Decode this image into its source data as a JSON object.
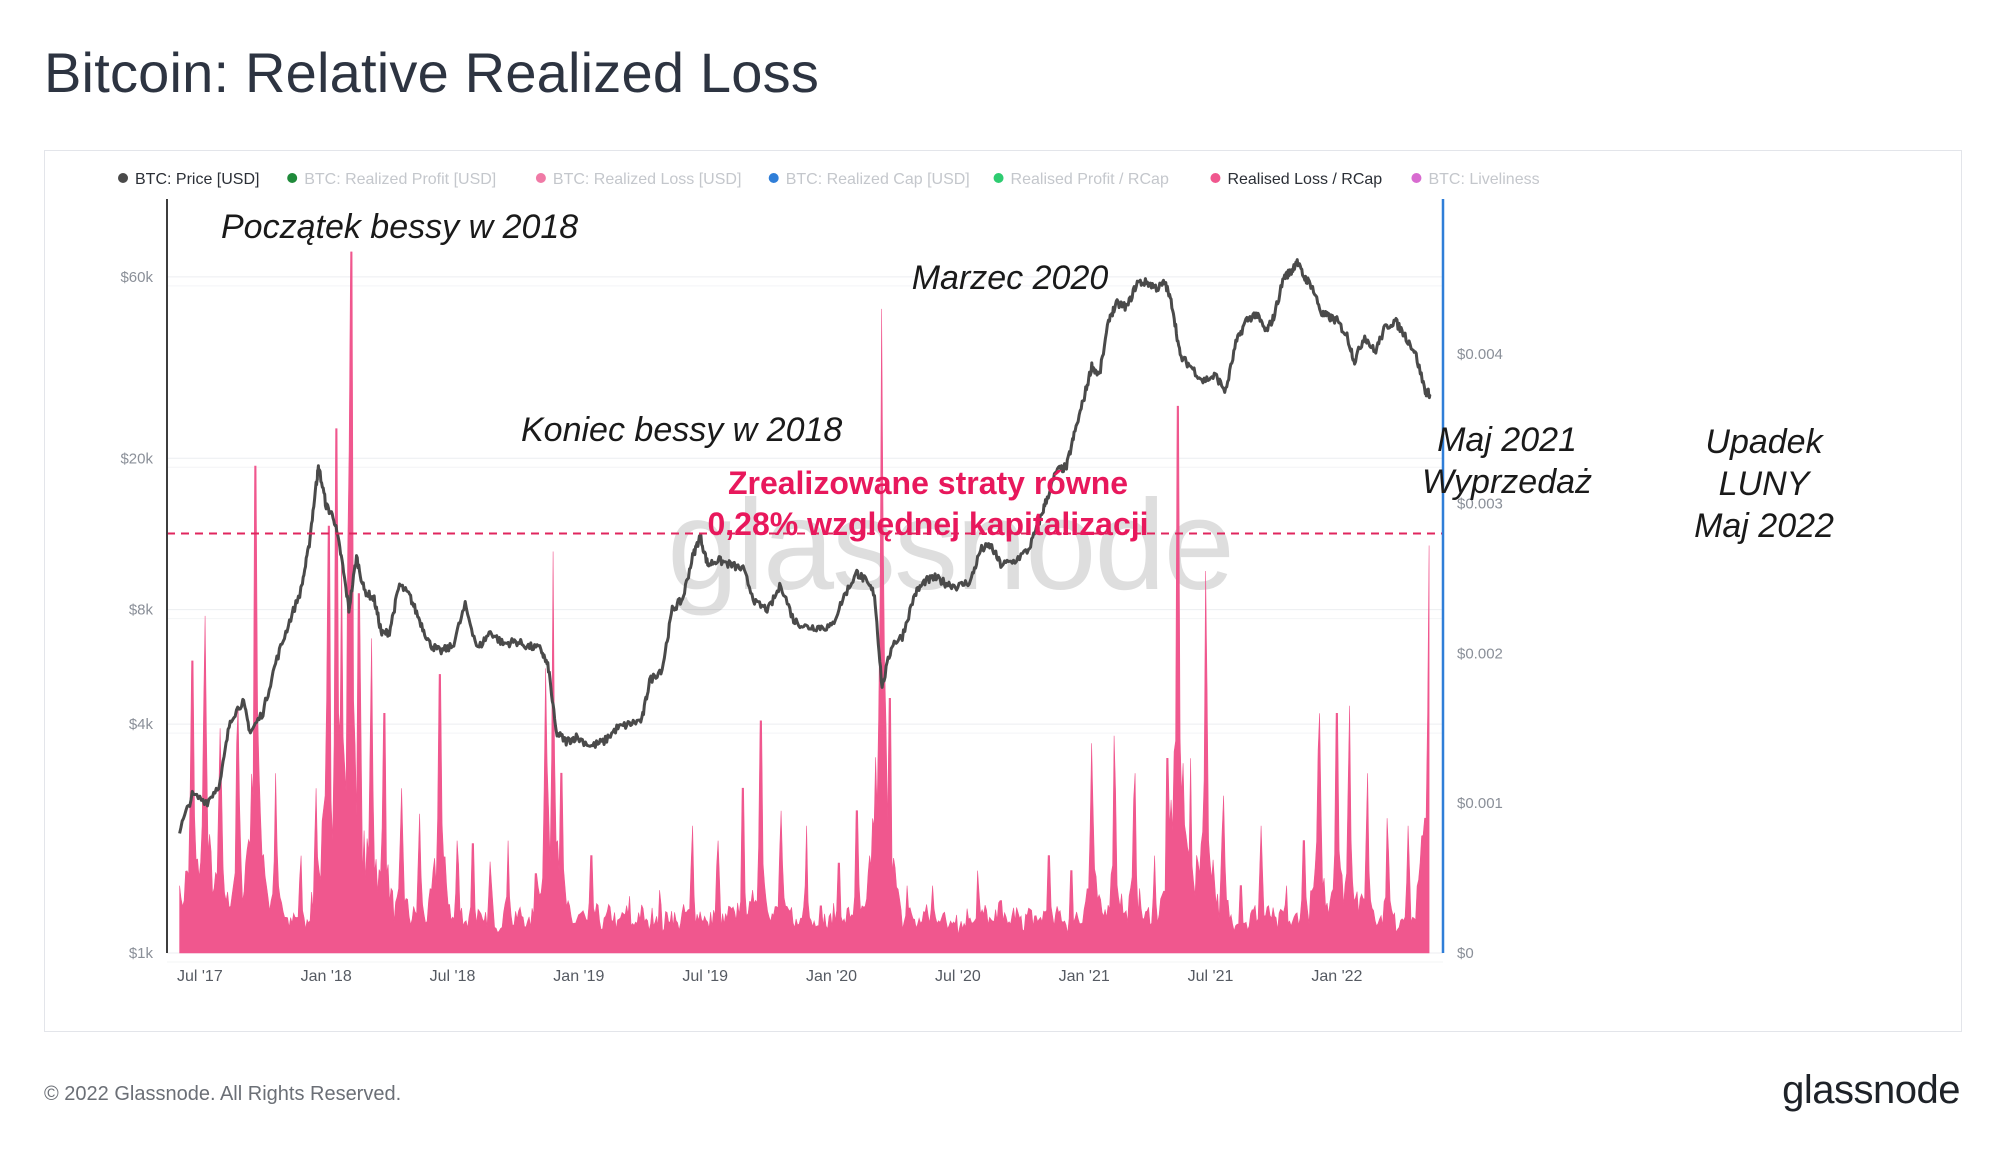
{
  "header": {
    "title": "Bitcoin: Relative Realized Loss"
  },
  "footer": {
    "copyright": "© 2022 Glassnode. All Rights Reserved.",
    "brand": "glassnode"
  },
  "watermark": "glassnode",
  "colors": {
    "price": "#4a4a4a",
    "loss": "#f0578e",
    "threshold": "#e0265e",
    "right_axis": "#2f7ed8",
    "annotation_text": "#1a1a1a",
    "annotation_highlight": "#e8185c"
  },
  "chart_data": {
    "type": "line",
    "title": "Bitcoin: Relative Realized Loss",
    "legend": [
      {
        "label": "BTC: Price [USD]",
        "color": "#4a4a4a",
        "active": true
      },
      {
        "label": "BTC: Realized Profit [USD]",
        "color": "#1f8a3a",
        "active": false
      },
      {
        "label": "BTC: Realized Loss [USD]",
        "color": "#f07aa6",
        "active": false
      },
      {
        "label": "BTC: Realized Cap [USD]",
        "color": "#2f7ed8",
        "active": false
      },
      {
        "label": "Realised Profit / RCap",
        "color": "#2ecc71",
        "active": false
      },
      {
        "label": "Realised Loss / RCap",
        "color": "#f0578e",
        "active": true
      },
      {
        "label": "BTC: Liveliness",
        "color": "#d86bd0",
        "active": false
      }
    ],
    "x_axis": {
      "start": "2017-06",
      "end": "2022-06",
      "ticks": [
        {
          "label": "Jul '17",
          "t": 2017.5
        },
        {
          "label": "Jan '18",
          "t": 2018.0
        },
        {
          "label": "Jul '18",
          "t": 2018.5
        },
        {
          "label": "Jan '19",
          "t": 2019.0
        },
        {
          "label": "Jul '19",
          "t": 2019.5
        },
        {
          "label": "Jan '20",
          "t": 2020.0
        },
        {
          "label": "Jul '20",
          "t": 2020.5
        },
        {
          "label": "Jan '21",
          "t": 2021.0
        },
        {
          "label": "Jul '21",
          "t": 2021.5
        },
        {
          "label": "Jan '22",
          "t": 2022.0
        }
      ]
    },
    "y_left": {
      "label": "BTC: Price [USD]",
      "scale": "log",
      "range": [
        1000,
        95000
      ],
      "ticks": [
        {
          "label": "$1k",
          "v": 1000
        },
        {
          "label": "$4k",
          "v": 4000
        },
        {
          "label": "$8k",
          "v": 8000
        },
        {
          "label": "$20k",
          "v": 20000
        },
        {
          "label": "$60k",
          "v": 60000
        }
      ]
    },
    "y_right": {
      "label": "Realised Loss / RCap",
      "scale": "linear",
      "range": [
        0,
        0.00502
      ],
      "ticks": [
        {
          "label": "$0",
          "v": 0
        },
        {
          "label": "$0.001",
          "v": 0.001
        },
        {
          "label": "$0.002",
          "v": 0.002
        },
        {
          "label": "$0.003",
          "v": 0.003
        },
        {
          "label": "$0.004",
          "v": 0.004
        }
      ]
    },
    "series": [
      {
        "name": "BTC: Price [USD]",
        "axis": "left",
        "points": [
          [
            2017.42,
            2100
          ],
          [
            2017.47,
            2600
          ],
          [
            2017.53,
            2500
          ],
          [
            2017.58,
            2800
          ],
          [
            2017.62,
            4100
          ],
          [
            2017.67,
            4600
          ],
          [
            2017.7,
            3800
          ],
          [
            2017.75,
            4300
          ],
          [
            2017.8,
            5800
          ],
          [
            2017.85,
            7300
          ],
          [
            2017.9,
            9000
          ],
          [
            2017.93,
            11500
          ],
          [
            2017.96,
            17000
          ],
          [
            2017.97,
            19000
          ],
          [
            2018.0,
            15000
          ],
          [
            2018.03,
            14000
          ],
          [
            2018.06,
            11000
          ],
          [
            2018.09,
            8000
          ],
          [
            2018.12,
            11000
          ],
          [
            2018.15,
            9000
          ],
          [
            2018.19,
            8500
          ],
          [
            2018.22,
            6900
          ],
          [
            2018.25,
            7000
          ],
          [
            2018.29,
            9300
          ],
          [
            2018.33,
            8700
          ],
          [
            2018.37,
            7500
          ],
          [
            2018.41,
            6500
          ],
          [
            2018.45,
            6200
          ],
          [
            2018.5,
            6400
          ],
          [
            2018.55,
            8200
          ],
          [
            2018.6,
            6300
          ],
          [
            2018.65,
            7000
          ],
          [
            2018.7,
            6500
          ],
          [
            2018.75,
            6600
          ],
          [
            2018.8,
            6400
          ],
          [
            2018.85,
            6300
          ],
          [
            2018.88,
            5600
          ],
          [
            2018.91,
            3800
          ],
          [
            2018.95,
            3600
          ],
          [
            2018.99,
            3700
          ],
          [
            2019.05,
            3500
          ],
          [
            2019.1,
            3600
          ],
          [
            2019.15,
            3900
          ],
          [
            2019.2,
            4000
          ],
          [
            2019.25,
            4100
          ],
          [
            2019.28,
            5200
          ],
          [
            2019.33,
            5600
          ],
          [
            2019.37,
            8000
          ],
          [
            2019.41,
            8500
          ],
          [
            2019.45,
            11000
          ],
          [
            2019.48,
            12500
          ],
          [
            2019.51,
            10500
          ],
          [
            2019.55,
            10800
          ],
          [
            2019.6,
            10500
          ],
          [
            2019.65,
            10200
          ],
          [
            2019.7,
            8300
          ],
          [
            2019.75,
            8000
          ],
          [
            2019.8,
            9300
          ],
          [
            2019.85,
            7500
          ],
          [
            2019.9,
            7200
          ],
          [
            2019.95,
            7200
          ],
          [
            2020.0,
            7200
          ],
          [
            2020.05,
            8700
          ],
          [
            2020.1,
            10000
          ],
          [
            2020.13,
            9600
          ],
          [
            2020.17,
            8800
          ],
          [
            2020.2,
            5000
          ],
          [
            2020.24,
            6500
          ],
          [
            2020.28,
            6800
          ],
          [
            2020.33,
            8800
          ],
          [
            2020.37,
            9500
          ],
          [
            2020.41,
            9700
          ],
          [
            2020.45,
            9400
          ],
          [
            2020.5,
            9200
          ],
          [
            2020.55,
            9500
          ],
          [
            2020.59,
            11500
          ],
          [
            2020.63,
            11800
          ],
          [
            2020.67,
            10500
          ],
          [
            2020.72,
            10700
          ],
          [
            2020.78,
            11500
          ],
          [
            2020.82,
            13500
          ],
          [
            2020.85,
            15500
          ],
          [
            2020.89,
            18500
          ],
          [
            2020.93,
            19000
          ],
          [
            2020.96,
            23000
          ],
          [
            2021.0,
            29000
          ],
          [
            2021.03,
            35000
          ],
          [
            2021.06,
            33000
          ],
          [
            2021.1,
            47000
          ],
          [
            2021.13,
            51000
          ],
          [
            2021.17,
            50000
          ],
          [
            2021.21,
            58000
          ],
          [
            2021.25,
            58000
          ],
          [
            2021.29,
            56000
          ],
          [
            2021.32,
            58000
          ],
          [
            2021.35,
            50000
          ],
          [
            2021.38,
            37000
          ],
          [
            2021.42,
            35000
          ],
          [
            2021.47,
            32000
          ],
          [
            2021.52,
            33000
          ],
          [
            2021.56,
            30000
          ],
          [
            2021.6,
            40000
          ],
          [
            2021.64,
            46000
          ],
          [
            2021.68,
            48000
          ],
          [
            2021.72,
            43000
          ],
          [
            2021.75,
            47000
          ],
          [
            2021.79,
            60000
          ],
          [
            2021.82,
            62000
          ],
          [
            2021.84,
            66000
          ],
          [
            2021.87,
            60000
          ],
          [
            2021.9,
            57000
          ],
          [
            2021.94,
            48000
          ],
          [
            2021.97,
            47000
          ],
          [
            2022.0,
            46000
          ],
          [
            2022.04,
            42000
          ],
          [
            2022.07,
            36000
          ],
          [
            2022.11,
            42000
          ],
          [
            2022.15,
            38000
          ],
          [
            2022.19,
            44000
          ],
          [
            2022.23,
            46000
          ],
          [
            2022.27,
            42000
          ],
          [
            2022.31,
            38000
          ],
          [
            2022.35,
            30000
          ],
          [
            2022.37,
            29500
          ]
        ]
      },
      {
        "name": "Realised Loss / RCap",
        "axis": "right",
        "spikes": [
          [
            2017.42,
            0.00045
          ],
          [
            2017.47,
            0.00195
          ],
          [
            2017.52,
            0.00225
          ],
          [
            2017.58,
            0.0015
          ],
          [
            2017.65,
            0.00165
          ],
          [
            2017.72,
            0.00325
          ],
          [
            2017.8,
            0.0012
          ],
          [
            2017.9,
            0.00065
          ],
          [
            2017.96,
            0.0011
          ],
          [
            2018.01,
            0.00285
          ],
          [
            2018.04,
            0.0035
          ],
          [
            2018.06,
            0.00265
          ],
          [
            2018.09,
            0.00335
          ],
          [
            2018.1,
            0.00468
          ],
          [
            2018.13,
            0.0024
          ],
          [
            2018.18,
            0.0021
          ],
          [
            2018.23,
            0.0016
          ],
          [
            2018.3,
            0.0011
          ],
          [
            2018.37,
            0.00093
          ],
          [
            2018.45,
            0.00186
          ],
          [
            2018.52,
            0.00075
          ],
          [
            2018.58,
            0.00073
          ],
          [
            2018.65,
            0.00061
          ],
          [
            2018.72,
            0.00075
          ],
          [
            2018.83,
            0.00053
          ],
          [
            2018.87,
            0.0019
          ],
          [
            2018.9,
            0.00268
          ],
          [
            2018.93,
            0.0012
          ],
          [
            2019.05,
            0.00065
          ],
          [
            2019.2,
            0.00038
          ],
          [
            2019.32,
            0.00042
          ],
          [
            2019.45,
            0.00085
          ],
          [
            2019.55,
            0.00075
          ],
          [
            2019.65,
            0.0011
          ],
          [
            2019.72,
            0.00155
          ],
          [
            2019.8,
            0.00095
          ],
          [
            2019.9,
            0.00085
          ],
          [
            2020.03,
            0.0006
          ],
          [
            2020.1,
            0.00095
          ],
          [
            2020.15,
            0.00065
          ],
          [
            2020.2,
            0.0043
          ],
          [
            2020.23,
            0.0017
          ],
          [
            2020.3,
            0.00045
          ],
          [
            2020.4,
            0.00045
          ],
          [
            2020.5,
            0.00012
          ],
          [
            2020.58,
            0.00055
          ],
          [
            2020.67,
            0.00035
          ],
          [
            2020.78,
            0.0003
          ],
          [
            2020.86,
            0.00065
          ],
          [
            2020.95,
            0.00055
          ],
          [
            2021.03,
            0.0014
          ],
          [
            2021.12,
            0.00145
          ],
          [
            2021.2,
            0.0012
          ],
          [
            2021.28,
            0.00065
          ],
          [
            2021.33,
            0.0013
          ],
          [
            2021.37,
            0.00365
          ],
          [
            2021.42,
            0.0013
          ],
          [
            2021.48,
            0.00255
          ],
          [
            2021.55,
            0.00105
          ],
          [
            2021.62,
            0.00045
          ],
          [
            2021.7,
            0.00085
          ],
          [
            2021.8,
            0.00045
          ],
          [
            2021.87,
            0.00075
          ],
          [
            2021.93,
            0.0016
          ],
          [
            2022.0,
            0.0016
          ],
          [
            2022.05,
            0.00165
          ],
          [
            2022.12,
            0.0012
          ],
          [
            2022.2,
            0.0009
          ],
          [
            2022.28,
            0.00085
          ],
          [
            2022.35,
            0.0009
          ],
          [
            2022.365,
            0.00272
          ]
        ]
      }
    ],
    "threshold": {
      "label": "0,28%",
      "value": 0.0028
    },
    "annotations": [
      {
        "text": "Początek bessy w 2018",
        "style": "italic"
      },
      {
        "text": "Koniec bessy w 2018",
        "style": "italic"
      },
      {
        "text": "Marzec 2020",
        "style": "italic"
      },
      {
        "text": "Maj 2021",
        "style": "italic"
      },
      {
        "text": "Wyprzedaż",
        "style": "italic"
      },
      {
        "text": "Upadek",
        "style": "italic"
      },
      {
        "text": "LUNY",
        "style": "italic"
      },
      {
        "text": "Maj 2022",
        "style": "italic"
      },
      {
        "text": "Zrealizowane straty równe",
        "style": "highlight"
      },
      {
        "text": "0,28% względnej kapitalizacji",
        "style": "highlight"
      }
    ]
  }
}
